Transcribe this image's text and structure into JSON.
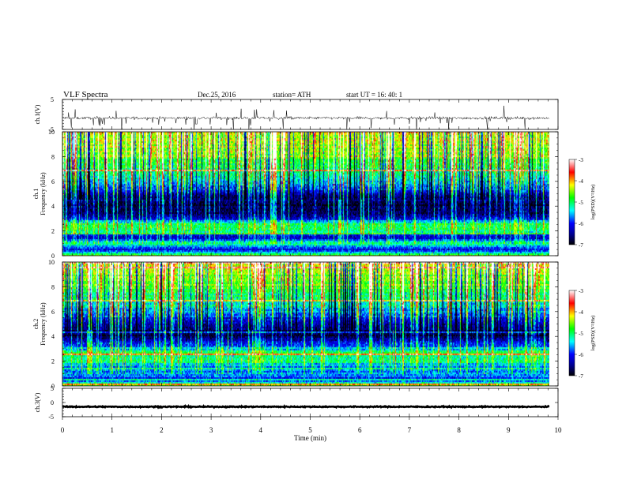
{
  "header": {
    "title": "VLF  Spectra",
    "date": "Dec.25, 2016",
    "station": "station= ATH",
    "start_ut": "start  UT  =    16: 40: 1"
  },
  "chart_data": [
    {
      "type": "line",
      "panel": "ch1-waveform",
      "ylabel": "ch.1(V)",
      "yticks": [
        "5",
        "-5"
      ],
      "ylim": [
        -5,
        5
      ],
      "xlim": [
        0,
        10
      ],
      "x_end": 9.83,
      "baseline": -1.2,
      "style": "noisy waveform with sharp spikes"
    },
    {
      "type": "heatmap",
      "panel": "ch1-spectrogram",
      "ylabel_channel": "ch.1",
      "ylabel": "Frequency  (kHz)",
      "yticks": [
        "0",
        "2",
        "4",
        "6",
        "8",
        "10"
      ],
      "ylim": [
        0,
        10
      ],
      "xlim": [
        0,
        10
      ],
      "x_end": 9.83,
      "colorbar": {
        "label": "log(PSD)(V²/Hz)",
        "ticks": [
          "-3",
          "-4",
          "-5",
          "-6",
          "-7"
        ],
        "range": [
          -7,
          -3
        ]
      },
      "profile_kHz_logPSD": [
        [
          0,
          -4.4
        ],
        [
          0.5,
          -6.3
        ],
        [
          1,
          -5.1
        ],
        [
          1.5,
          -6.4
        ],
        [
          2,
          -5.2
        ],
        [
          2.6,
          -5.0
        ],
        [
          3,
          -6.3
        ],
        [
          3.5,
          -6.6
        ],
        [
          4,
          -6.8
        ],
        [
          4.8,
          -6.5
        ],
        [
          5.5,
          -5.8
        ],
        [
          6.5,
          -5.2
        ],
        [
          8,
          -4.6
        ],
        [
          10,
          -4.2
        ]
      ],
      "impulsive_events_per_min": 14
    },
    {
      "type": "heatmap",
      "panel": "ch2-spectrogram",
      "ylabel_channel": "ch.2",
      "ylabel": "Frequency  (kHz)",
      "yticks": [
        "0",
        "2",
        "4",
        "6",
        "8",
        "10"
      ],
      "ylim": [
        0,
        10
      ],
      "xlim": [
        0,
        10
      ],
      "x_end": 9.83,
      "colorbar": {
        "label": "log(PSD)(V²/Hz)",
        "ticks": [
          "-3",
          "-4",
          "-5",
          "-6",
          "-7"
        ],
        "range": [
          -7,
          -3
        ]
      },
      "profile_kHz_logPSD": [
        [
          0,
          -4.4
        ],
        [
          0.5,
          -6.0
        ],
        [
          1,
          -5.6
        ],
        [
          1.5,
          -5.9
        ],
        [
          2,
          -5.1
        ],
        [
          2.7,
          -5.0
        ],
        [
          3.3,
          -5.9
        ],
        [
          3.8,
          -6.5
        ],
        [
          4.4,
          -6.9
        ],
        [
          5,
          -6.4
        ],
        [
          6,
          -5.6
        ],
        [
          7,
          -5.1
        ],
        [
          8.5,
          -4.6
        ],
        [
          10,
          -4.2
        ]
      ],
      "impulsive_events_per_min": 14
    },
    {
      "type": "line",
      "panel": "ch3-waveform",
      "ylabel": "ch.3(V)",
      "yticks": [
        "5",
        "0",
        "-5"
      ],
      "ylim": [
        -5,
        5
      ],
      "xlim": [
        0,
        10
      ],
      "x_end": 9.83,
      "baseline": -1.5,
      "style": "flat thick trace",
      "xlabel": "Time  (min)",
      "xticks": [
        "0",
        "1",
        "2",
        "3",
        "4",
        "5",
        "6",
        "7",
        "8",
        "9",
        "10"
      ]
    }
  ]
}
